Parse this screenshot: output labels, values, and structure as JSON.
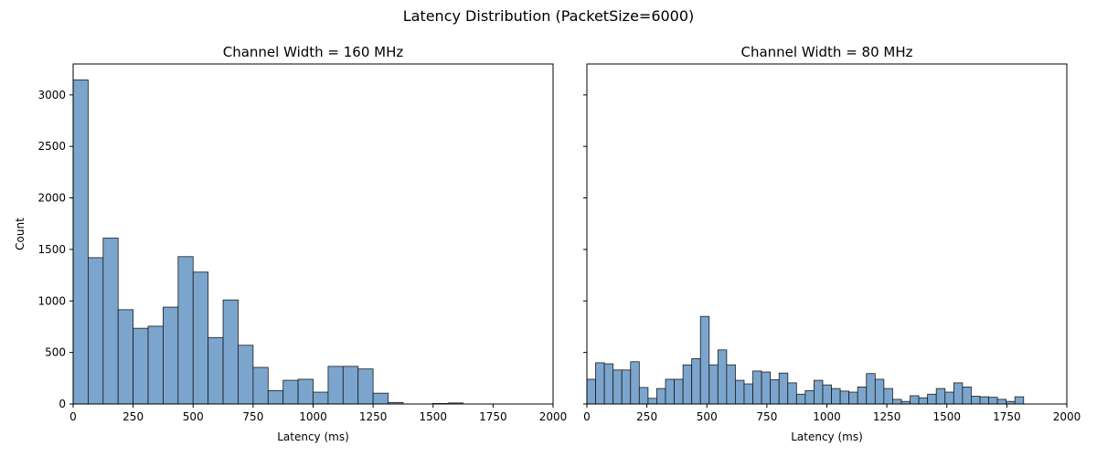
{
  "suptitle": "Latency Distribution (PacketSize=6000)",
  "style": {
    "bar_fill": "#7ba5cc",
    "bar_edge": "#1a1a1a",
    "axis_color": "#000000"
  },
  "chart_data": [
    {
      "type": "bar",
      "subtype": "histogram",
      "title": "Channel Width = 160 MHz",
      "xlabel": "Latency (ms)",
      "ylabel": "Count",
      "xlim": [
        0,
        2000
      ],
      "ylim": [
        0,
        3300
      ],
      "xticks": [
        0,
        250,
        500,
        750,
        1000,
        1250,
        1500,
        1750,
        2000
      ],
      "yticks": [
        0,
        500,
        1000,
        1500,
        2000,
        2500,
        3000
      ],
      "bin_width": 62.5,
      "bin_start": 0,
      "values": [
        3145,
        1420,
        1610,
        915,
        735,
        755,
        940,
        1430,
        1280,
        645,
        1010,
        570,
        355,
        130,
        230,
        240,
        115,
        365,
        365,
        340,
        105,
        15,
        0,
        0,
        5,
        10,
        0,
        0,
        0,
        0,
        0,
        0
      ]
    },
    {
      "type": "bar",
      "subtype": "histogram",
      "title": "Channel Width = 80 MHz",
      "xlabel": "Latency (ms)",
      "ylabel": "",
      "xlim": [
        0,
        2000
      ],
      "ylim": [
        0,
        3300
      ],
      "xticks": [
        0,
        250,
        500,
        750,
        1000,
        1250,
        1500,
        1750,
        2000
      ],
      "yticks": [
        0,
        500,
        1000,
        1500,
        2000,
        2500,
        3000
      ],
      "show_ytick_labels": false,
      "bin_width": 36.4,
      "bin_start": 0,
      "values": [
        240,
        400,
        390,
        330,
        330,
        410,
        160,
        55,
        150,
        240,
        240,
        380,
        440,
        850,
        380,
        525,
        380,
        230,
        195,
        320,
        310,
        235,
        300,
        205,
        95,
        130,
        230,
        185,
        150,
        125,
        115,
        165,
        295,
        240,
        150,
        45,
        25,
        80,
        60,
        95,
        150,
        115,
        205,
        165,
        75,
        70,
        65,
        45,
        25,
        70
      ]
    }
  ]
}
